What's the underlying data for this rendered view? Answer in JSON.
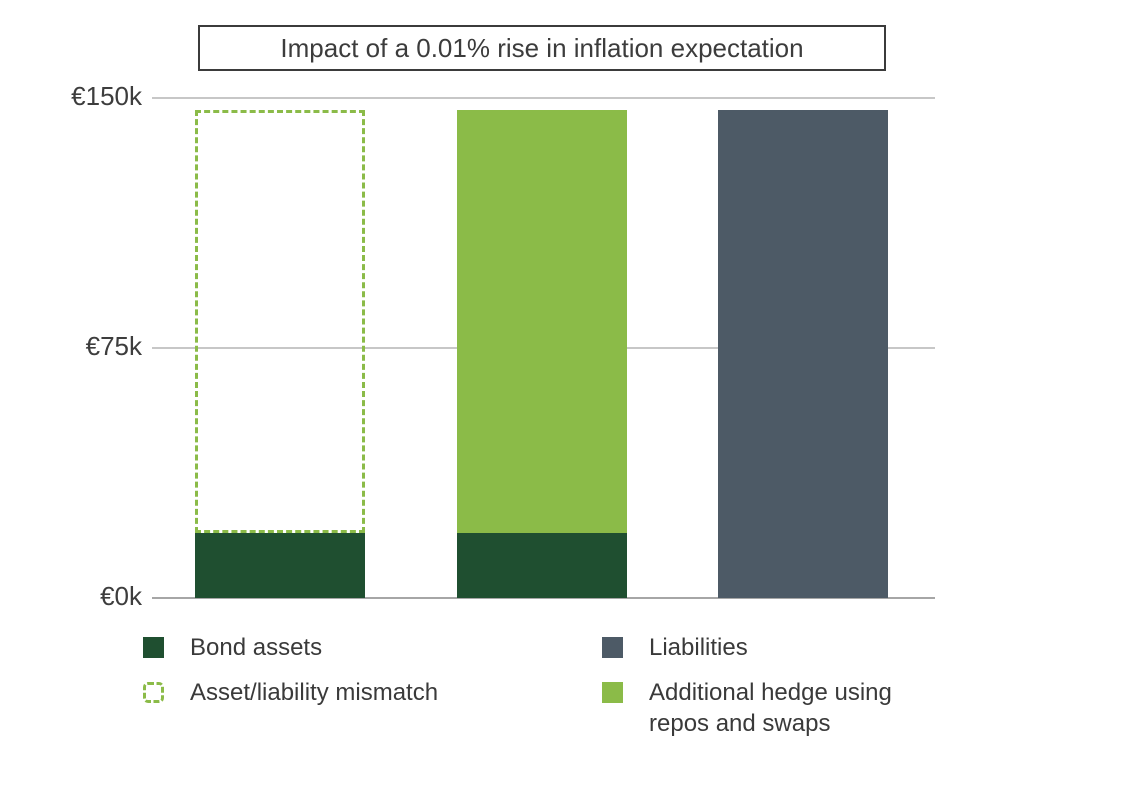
{
  "chart_data": {
    "type": "bar",
    "title": "Impact of a 0.01% rise in inflation expectation",
    "currency_unit": "€k",
    "y_axis": {
      "ylim": [
        0,
        150
      ],
      "ticks": [
        {
          "label": "€0k",
          "value": 0
        },
        {
          "label": "€75k",
          "value": 75
        },
        {
          "label": "€150k",
          "value": 150
        }
      ],
      "grid": true
    },
    "x_axis": {
      "labels_shown": false
    },
    "bars": [
      {
        "name": "bond-portfolio-with-mismatch",
        "segments": [
          {
            "series": "Bond assets",
            "value": 19.5
          },
          {
            "series": "Asset/liability mismatch",
            "value": 127
          }
        ]
      },
      {
        "name": "bond-portfolio-with-additional-hedge",
        "segments": [
          {
            "series": "Bond assets",
            "value": 19.5
          },
          {
            "series": "Additional hedge using repos and swaps",
            "value": 127
          }
        ]
      },
      {
        "name": "liabilities",
        "segments": [
          {
            "series": "Liabilities",
            "value": 146.5
          }
        ]
      }
    ],
    "series_styles": {
      "Bond assets": {
        "style": "solid",
        "fill": "#1f4f30"
      },
      "Asset/liability mismatch": {
        "style": "dashed",
        "fill": "none",
        "border": "#8bbb48"
      },
      "Additional hedge using repos and swaps": {
        "style": "solid",
        "fill": "#8bbb48"
      },
      "Liabilities": {
        "style": "solid",
        "fill": "#4d5a66"
      }
    },
    "legend": {
      "position": "bottom",
      "items": [
        {
          "label": "Bond assets"
        },
        {
          "label": "Liabilities"
        },
        {
          "label": "Asset/liability mismatch"
        },
        {
          "label": "Additional hedge using repos and swaps"
        }
      ]
    }
  },
  "colors": {
    "dark_green": "#1f4f30",
    "light_green": "#8bbb48",
    "slate": "#4d5a66",
    "gridline": "#c7c7c7",
    "baseline": "#a6a6a6",
    "text": "#3d3d3d",
    "title_border": "#3b3b3b",
    "background": "#ffffff"
  }
}
